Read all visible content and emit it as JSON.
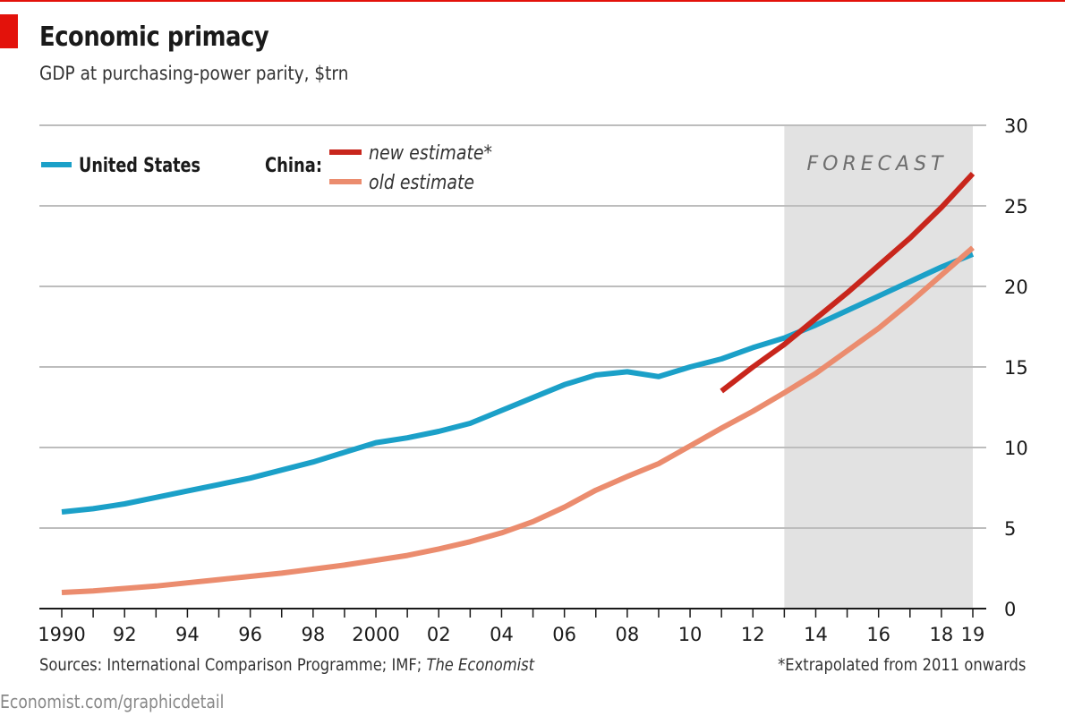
{
  "title": "Economic primacy",
  "subtitle": "GDP at purchasing-power parity, $trn",
  "source_prefix": "Sources: International Comparison Programme; IMF; ",
  "source_italic": "The Economist",
  "footnote": "*Extrapolated from 2011 onwards",
  "credit": "Economist.com/graphicdetail",
  "legend": {
    "us": "United States",
    "china_prefix": "China:",
    "china_new": "new estimate*",
    "china_old": "old estimate"
  },
  "forecast_label": "FORECAST",
  "colors": {
    "us": "#1ba0c8",
    "china_new": "#c8261c",
    "china_old": "#eb8c6e",
    "forecast_band": "#e2e2e2",
    "grid": "#bdbdbd",
    "accent": "#e3120b"
  },
  "chart_data": {
    "type": "line",
    "xlim": [
      1990,
      2019
    ],
    "ylim": [
      0,
      30
    ],
    "y_ticks": [
      0,
      5,
      10,
      15,
      20,
      25,
      30
    ],
    "y_tick_labels": [
      "0",
      "5",
      "10",
      "15",
      "20",
      "25",
      "30"
    ],
    "x_tick_labels": [
      {
        "x": 1990,
        "label": "1990"
      },
      {
        "x": 1992,
        "label": "92"
      },
      {
        "x": 1994,
        "label": "94"
      },
      {
        "x": 1996,
        "label": "96"
      },
      {
        "x": 1998,
        "label": "98"
      },
      {
        "x": 2000,
        "label": "2000"
      },
      {
        "x": 2002,
        "label": "02"
      },
      {
        "x": 2004,
        "label": "04"
      },
      {
        "x": 2006,
        "label": "06"
      },
      {
        "x": 2008,
        "label": "08"
      },
      {
        "x": 2010,
        "label": "10"
      },
      {
        "x": 2012,
        "label": "12"
      },
      {
        "x": 2014,
        "label": "14"
      },
      {
        "x": 2016,
        "label": "16"
      },
      {
        "x": 2018,
        "label": "18"
      },
      {
        "x": 2019,
        "label": "19"
      }
    ],
    "forecast_range": [
      2013,
      2019
    ],
    "grid": true,
    "y_axis_side": "right",
    "series": [
      {
        "name": "United States",
        "key": "us",
        "x": [
          1990,
          1991,
          1992,
          1993,
          1994,
          1995,
          1996,
          1997,
          1998,
          1999,
          2000,
          2001,
          2002,
          2003,
          2004,
          2005,
          2006,
          2007,
          2008,
          2009,
          2010,
          2011,
          2012,
          2013,
          2014,
          2015,
          2016,
          2017,
          2018,
          2019
        ],
        "y": [
          6.0,
          6.2,
          6.5,
          6.9,
          7.3,
          7.7,
          8.1,
          8.6,
          9.1,
          9.7,
          10.3,
          10.6,
          11.0,
          11.5,
          12.3,
          13.1,
          13.9,
          14.5,
          14.7,
          14.4,
          15.0,
          15.5,
          16.2,
          16.8,
          17.6,
          18.5,
          19.4,
          20.3,
          21.2,
          22.0
        ]
      },
      {
        "name": "China: new estimate*",
        "key": "china_new",
        "x": [
          2011,
          2012,
          2013,
          2014,
          2015,
          2016,
          2017,
          2018,
          2019
        ],
        "y": [
          13.5,
          15.0,
          16.4,
          18.0,
          19.6,
          21.3,
          23.0,
          24.9,
          27.0
        ]
      },
      {
        "name": "China: old estimate",
        "key": "china_old",
        "x": [
          1990,
          1991,
          1992,
          1993,
          1994,
          1995,
          1996,
          1997,
          1998,
          1999,
          2000,
          2001,
          2002,
          2003,
          2004,
          2005,
          2006,
          2007,
          2008,
          2009,
          2010,
          2011,
          2012,
          2013,
          2014,
          2015,
          2016,
          2017,
          2018,
          2019
        ],
        "y": [
          1.0,
          1.1,
          1.25,
          1.4,
          1.6,
          1.8,
          2.0,
          2.2,
          2.45,
          2.7,
          3.0,
          3.3,
          3.7,
          4.15,
          4.7,
          5.4,
          6.3,
          7.35,
          8.2,
          9.0,
          10.1,
          11.2,
          12.25,
          13.4,
          14.6,
          16.0,
          17.4,
          19.0,
          20.7,
          22.4
        ]
      }
    ]
  }
}
